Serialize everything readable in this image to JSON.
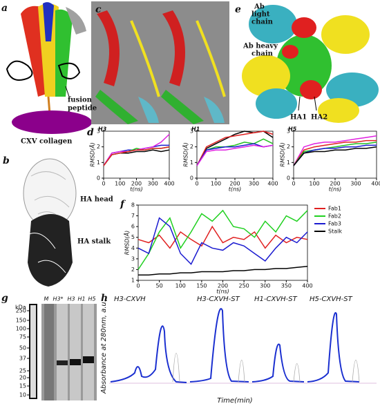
{
  "panel_labels": [
    "a",
    "b",
    "c",
    "d",
    "e",
    "f",
    "g",
    "h"
  ],
  "a": {
    "fusion_peptide": [
      "fusion",
      "peptide"
    ],
    "collagen": "CXV collagen"
  },
  "b": {
    "head": "HA head",
    "stalk": "HA stalk"
  },
  "e": {
    "light": [
      "Ab",
      "light",
      "chain"
    ],
    "heavy": [
      "Ab heavy",
      "chain"
    ],
    "ha1": "HA1",
    "ha2": "HA2"
  },
  "chart_data": [
    {
      "type": "line",
      "title": "H3",
      "ylabel": "RMSD(Å)",
      "xlabel": "t(ns)",
      "x": [
        0,
        50,
        100,
        150,
        200,
        250,
        300,
        350,
        400
      ],
      "xlim": [
        0,
        400
      ],
      "xticks": [
        0,
        100,
        200,
        300,
        400
      ],
      "ylim": [
        0,
        3
      ],
      "yticks": [
        0,
        1,
        2,
        3
      ],
      "series": [
        {
          "color": "#000000",
          "values": [
            0.8,
            1.5,
            1.6,
            1.6,
            1.7,
            1.7,
            1.8,
            1.7,
            1.8
          ]
        },
        {
          "color": "#1a1ad0",
          "values": [
            0.8,
            1.6,
            1.7,
            1.8,
            1.8,
            1.9,
            2.0,
            2.1,
            2.1
          ]
        },
        {
          "color": "#20c020",
          "values": [
            0.8,
            1.5,
            1.6,
            1.7,
            1.9,
            1.8,
            1.9,
            1.9,
            2.0
          ]
        },
        {
          "color": "#e020e0",
          "values": [
            0.8,
            1.6,
            1.7,
            1.7,
            1.8,
            1.9,
            2.0,
            2.3,
            2.8
          ]
        },
        {
          "color": "#e02020",
          "values": [
            0.8,
            1.5,
            1.6,
            1.7,
            1.8,
            1.8,
            1.9,
            1.9,
            2.0
          ]
        }
      ]
    },
    {
      "type": "line",
      "title": "H1",
      "ylabel": "RMSD(Å)",
      "xlabel": "t(ns)",
      "x": [
        0,
        50,
        100,
        150,
        200,
        250,
        300,
        350,
        400
      ],
      "xlim": [
        0,
        400
      ],
      "xticks": [
        0,
        100,
        200,
        300,
        400
      ],
      "ylim": [
        0,
        3
      ],
      "yticks": [
        0,
        1,
        2,
        3
      ],
      "series": [
        {
          "color": "#000000",
          "values": [
            0.8,
            1.9,
            2.2,
            2.5,
            2.8,
            3.0,
            2.9,
            3.0,
            2.6
          ]
        },
        {
          "color": "#e02020",
          "values": [
            0.8,
            2.0,
            2.3,
            2.6,
            2.7,
            2.8,
            2.9,
            3.0,
            2.8
          ]
        },
        {
          "color": "#20c020",
          "values": [
            0.8,
            1.8,
            2.0,
            2.0,
            2.1,
            2.3,
            2.2,
            2.5,
            2.2
          ]
        },
        {
          "color": "#1a1ad0",
          "values": [
            0.8,
            1.8,
            1.9,
            2.0,
            2.0,
            2.1,
            2.2,
            2.0,
            2.1
          ]
        },
        {
          "color": "#e020e0",
          "values": [
            0.8,
            1.7,
            1.8,
            1.8,
            1.9,
            2.0,
            2.1,
            2.0,
            2.1
          ]
        }
      ]
    },
    {
      "type": "line",
      "title": "H5",
      "ylabel": "RMSD(Å)",
      "xlabel": "t(ns)",
      "x": [
        0,
        50,
        100,
        150,
        200,
        250,
        300,
        350,
        400
      ],
      "xlim": [
        0,
        400
      ],
      "xticks": [
        0,
        100,
        200,
        300,
        400
      ],
      "ylim": [
        0,
        3
      ],
      "yticks": [
        0,
        1,
        2,
        3
      ],
      "series": [
        {
          "color": "#e020e0",
          "values": [
            0.8,
            2.0,
            2.2,
            2.3,
            2.3,
            2.4,
            2.5,
            2.6,
            2.7
          ]
        },
        {
          "color": "#e02020",
          "values": [
            0.8,
            1.8,
            2.0,
            2.1,
            2.2,
            2.3,
            2.3,
            2.4,
            2.4
          ]
        },
        {
          "color": "#20c020",
          "values": [
            0.8,
            1.7,
            1.8,
            1.9,
            2.0,
            2.1,
            2.2,
            2.2,
            2.3
          ]
        },
        {
          "color": "#1a1ad0",
          "values": [
            0.8,
            1.6,
            1.8,
            1.9,
            1.9,
            2.0,
            2.0,
            2.1,
            2.1
          ]
        },
        {
          "color": "#000000",
          "values": [
            0.8,
            1.6,
            1.7,
            1.7,
            1.8,
            1.8,
            1.9,
            1.9,
            2.0
          ]
        }
      ]
    },
    {
      "type": "line",
      "ylabel": "RMSD(Å)",
      "xlabel": "t(ns)",
      "legend": "right",
      "x": [
        0,
        25,
        50,
        75,
        100,
        125,
        150,
        175,
        200,
        225,
        250,
        275,
        300,
        325,
        350,
        375,
        400
      ],
      "xlim": [
        0,
        400
      ],
      "xticks": [
        0,
        50,
        100,
        150,
        200,
        250,
        300,
        350,
        400
      ],
      "ylim": [
        1,
        8
      ],
      "yticks": [
        1,
        2,
        3,
        4,
        5,
        6,
        7,
        8
      ],
      "series": [
        {
          "name": "Fab1",
          "color": "#e02020",
          "values": [
            4.8,
            4.5,
            5.2,
            4.0,
            5.5,
            4.8,
            4.2,
            6.0,
            4.5,
            5.0,
            4.8,
            5.5,
            4.0,
            5.2,
            4.5,
            5.0,
            4.8
          ]
        },
        {
          "name": "Fab2",
          "color": "#20d020",
          "values": [
            2.0,
            3.5,
            5.5,
            6.8,
            4.0,
            5.5,
            7.2,
            6.5,
            7.5,
            6.0,
            5.8,
            5.0,
            6.5,
            5.5,
            7.0,
            6.5,
            7.5
          ]
        },
        {
          "name": "Fab3",
          "color": "#1a1ad0",
          "values": [
            4.0,
            3.5,
            6.8,
            6.0,
            3.5,
            2.5,
            4.5,
            4.0,
            3.8,
            4.5,
            4.2,
            3.5,
            2.8,
            4.0,
            5.0,
            4.5,
            5.5
          ]
        },
        {
          "name": "Stalk",
          "color": "#000000",
          "values": [
            1.5,
            1.5,
            1.6,
            1.6,
            1.7,
            1.7,
            1.8,
            1.8,
            1.8,
            1.9,
            1.9,
            2.0,
            2.0,
            2.1,
            2.1,
            2.2,
            2.3
          ]
        }
      ]
    }
  ],
  "g": {
    "unit": "kDa",
    "ladder": [
      250,
      150,
      100,
      75,
      50,
      37,
      25,
      20,
      15,
      10
    ],
    "lanes": [
      "M",
      "H3*",
      "H3",
      "H1",
      "H5"
    ]
  },
  "h": {
    "titles": [
      "H3-CXVH",
      "H3-CXVH-ST",
      "H1-CXVH-ST",
      "H5-CXVH-ST"
    ],
    "ylabel": "Absorbance at 280nm, a.u.",
    "xlabel": "Time(min)"
  }
}
